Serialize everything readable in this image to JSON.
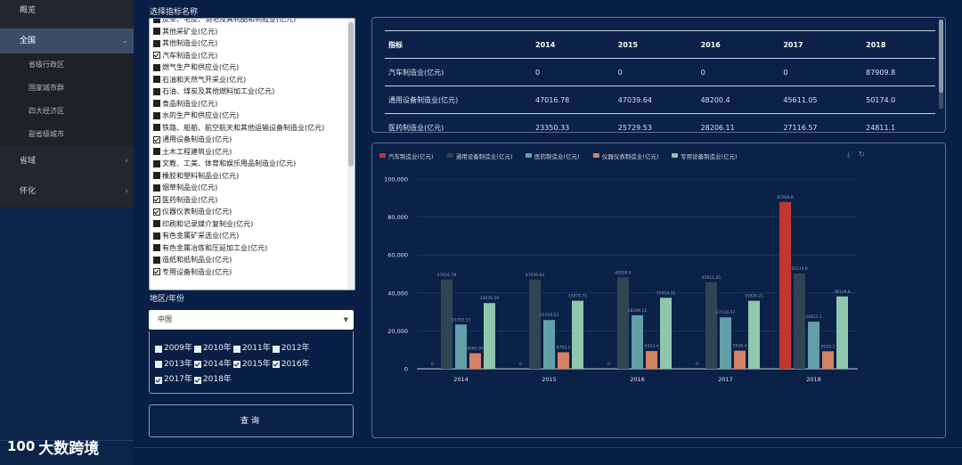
{
  "sidebar": {
    "overview": "概览",
    "items": [
      {
        "label": "全国",
        "expanded": true,
        "children": [
          "省级行政区",
          "国家城市群",
          "四大经济区",
          "副省级城市"
        ]
      },
      {
        "label": "省域",
        "chevron": "chevron-left-icon"
      },
      {
        "label": "怀化",
        "chevron": "chevron-left-icon"
      }
    ]
  },
  "logo": {
    "mark": "100",
    "text": "大数跨境"
  },
  "indicator_panel": {
    "title": "选择指标名称",
    "items": [
      {
        "label": "皮革、毛皮、羽毛及其制品和制鞋业(亿元)",
        "checked": false
      },
      {
        "label": "其他采矿业(亿元)",
        "checked": false
      },
      {
        "label": "其他制造业(亿元)",
        "checked": false
      },
      {
        "label": "汽车制造业(亿元)",
        "checked": true
      },
      {
        "label": "燃气生产和供应业(亿元)",
        "checked": false
      },
      {
        "label": "石油和天然气开采业(亿元)",
        "checked": false
      },
      {
        "label": "石油、煤炭及其他燃料加工业(亿元)",
        "checked": false
      },
      {
        "label": "食品制造业(亿元)",
        "checked": false
      },
      {
        "label": "水的生产和供应业(亿元)",
        "checked": false
      },
      {
        "label": "铁路、船舶、航空航天和其他运输设备制造业(亿元)",
        "checked": false
      },
      {
        "label": "通用设备制造业(亿元)",
        "checked": true
      },
      {
        "label": "土木工程建筑业(亿元)",
        "checked": false
      },
      {
        "label": "文教、工美、体育和娱乐用品制造业(亿元)",
        "checked": false
      },
      {
        "label": "橡胶和塑料制品业(亿元)",
        "checked": false
      },
      {
        "label": "烟草制品业(亿元)",
        "checked": false
      },
      {
        "label": "医药制造业(亿元)",
        "checked": true
      },
      {
        "label": "仪器仪表制造业(亿元)",
        "checked": true
      },
      {
        "label": "印刷和记录媒介复制业(亿元)",
        "checked": false
      },
      {
        "label": "有色金属矿采选业(亿元)",
        "checked": false
      },
      {
        "label": "有色金属冶炼和压延加工业(亿元)",
        "checked": false
      },
      {
        "label": "造纸和纸制品业(亿元)",
        "checked": false
      },
      {
        "label": "专用设备制造业(亿元)",
        "checked": true
      }
    ]
  },
  "region": {
    "title": "地区/年份",
    "selected": "中国",
    "years": [
      {
        "label": "2009年",
        "checked": false
      },
      {
        "label": "2010年",
        "checked": false
      },
      {
        "label": "2011年",
        "checked": false
      },
      {
        "label": "2012年",
        "checked": false
      },
      {
        "label": "2013年",
        "checked": false
      },
      {
        "label": "2014年",
        "checked": true
      },
      {
        "label": "2015年",
        "checked": true
      },
      {
        "label": "2016年",
        "checked": true
      },
      {
        "label": "2017年",
        "checked": true
      },
      {
        "label": "2018年",
        "checked": true
      }
    ]
  },
  "query_button": "查询",
  "table": {
    "headers": [
      "指标",
      "2014",
      "2015",
      "2016",
      "2017",
      "2018"
    ],
    "rows": [
      [
        "汽车制造业(亿元)",
        "0",
        "0",
        "0",
        "0",
        "87909.8"
      ],
      [
        "通用设备制造业(亿元)",
        "47016.78",
        "47039.64",
        "48200.4",
        "45611.05",
        "50174.0"
      ],
      [
        "医药制造业(亿元)",
        "23350.33",
        "25729.53",
        "28206.11",
        "27116.57",
        "24811.1"
      ]
    ]
  },
  "toolbox": {
    "download": "⤓",
    "refresh": "↻"
  },
  "chart_data": {
    "type": "bar",
    "categories": [
      "2014",
      "2015",
      "2016",
      "2017",
      "2018"
    ],
    "ylim": [
      0,
      100000
    ],
    "yticks": [
      "0",
      "20,000",
      "40,000",
      "60,000",
      "80,000",
      "100,000"
    ],
    "legend_position": "top-left",
    "series": [
      {
        "name": "汽车制造业(亿元)",
        "color": "#c23531",
        "values": [
          0,
          0,
          0,
          0,
          87909.8
        ],
        "labels": [
          "0",
          "0",
          "0",
          "0",
          "87909.8"
        ]
      },
      {
        "name": "通用设备制造业(亿元)",
        "color": "#2f4554",
        "values": [
          47016.78,
          47039.64,
          48200.4,
          45611.05,
          50174.0
        ],
        "labels": [
          "47016.78",
          "47039.64",
          "48200.4",
          "45611.05",
          "50174.0"
        ]
      },
      {
        "name": "医药制造业(亿元)",
        "color": "#61a0a8",
        "values": [
          23350.33,
          25729.53,
          28206.11,
          27116.57,
          24811.1
        ],
        "labels": [
          "23350.33",
          "25729.53",
          "28206.11",
          "27116.57",
          "24811.1"
        ]
      },
      {
        "name": "仪器仪表制造业(亿元)",
        "color": "#d48265",
        "values": [
          8185.07,
          8703.1,
          9353.4,
          9558.4,
          9220.2
        ],
        "labels": [
          "8185.07",
          "8703.1",
          "9353.4",
          "9558.4",
          "9220.2"
        ]
      },
      {
        "name": "专用设备制造业(亿元)",
        "color": "#91c7ae",
        "values": [
          34635.59,
          35875.75,
          37414.31,
          35829.21,
          38129.8
        ],
        "labels": [
          "34635.59",
          "35875.75",
          "37414.31",
          "35829.21",
          "38129.8"
        ]
      }
    ]
  }
}
